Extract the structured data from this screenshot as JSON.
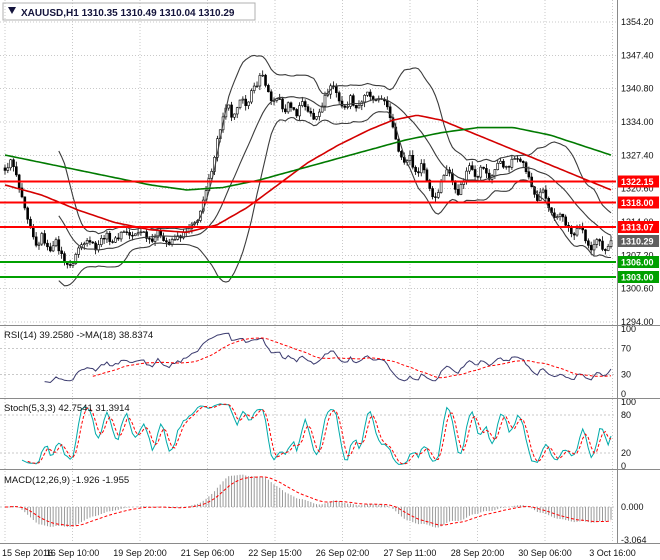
{
  "window": {
    "title": "XAUUSD,H1 1310.35 1310.49 1310.04 1310.29",
    "symbol": "XAUUSD",
    "timeframe": "H1",
    "ohlc": {
      "open": "1310.35",
      "high": "1310.49",
      "low": "1310.04",
      "close": "1310.29"
    }
  },
  "colors": {
    "background": "#ffffff",
    "grid": "#c9c9c9",
    "text": "#111111",
    "candle": "#000000",
    "candle_up_fill": "#ffffff",
    "bollinger": "#3c3c3c",
    "ma_red": "#d40000",
    "ma_green": "#007a00",
    "level_red": "#ff0000",
    "level_green": "#00a000",
    "bid_tag": "#5f5f5f",
    "rsi": "#3a3a6e",
    "signal_red": "#ff0000",
    "stoch": "#00aaaa",
    "macd_hist": "#9a9a9a",
    "separator": "#8a8a8a"
  },
  "chart_data": [
    {
      "type": "candlestick",
      "name": "main-price-panel",
      "title": "XAUUSD,H1 1310.35 1310.49 1310.04 1310.29",
      "ylim": [
        1294.0,
        1354.2
      ],
      "y_tick_labels": [
        "1354.20",
        "1347.40",
        "1340.80",
        "1334.00",
        "1327.40",
        "1320.60",
        "1314.00",
        "1307.20",
        "1300.60",
        "1294.00"
      ],
      "x_tick_labels": [
        "15 Sep 2016",
        "16 Sep 10:00",
        "19 Sep 20:00",
        "21 Sep 06:00",
        "22 Sep 15:00",
        "26 Sep 02:00",
        "27 Sep 11:00",
        "28 Sep 20:00",
        "30 Sep 06:00",
        "3 Oct 16:00"
      ],
      "candle_count": 215,
      "close_path": [
        [
          0.0,
          1324.0
        ],
        [
          0.008,
          1326.5
        ],
        [
          0.016,
          1324.5
        ],
        [
          0.028,
          1318.5
        ],
        [
          0.04,
          1313.0
        ],
        [
          0.052,
          1309.0
        ],
        [
          0.062,
          1311.5
        ],
        [
          0.072,
          1308.0
        ],
        [
          0.082,
          1310.5
        ],
        [
          0.095,
          1307.0
        ],
        [
          0.108,
          1304.8
        ],
        [
          0.12,
          1308.5
        ],
        [
          0.135,
          1311.0
        ],
        [
          0.15,
          1309.0
        ],
        [
          0.165,
          1311.5
        ],
        [
          0.18,
          1310.0
        ],
        [
          0.195,
          1312.5
        ],
        [
          0.21,
          1311.0
        ],
        [
          0.225,
          1312.5
        ],
        [
          0.24,
          1310.5
        ],
        [
          0.255,
          1312.0
        ],
        [
          0.27,
          1309.5
        ],
        [
          0.285,
          1311.0
        ],
        [
          0.3,
          1312.0
        ],
        [
          0.315,
          1314.0
        ],
        [
          0.325,
          1317.0
        ],
        [
          0.335,
          1321.5
        ],
        [
          0.345,
          1327.0
        ],
        [
          0.352,
          1331.5
        ],
        [
          0.36,
          1335.0
        ],
        [
          0.368,
          1337.5
        ],
        [
          0.376,
          1334.5
        ],
        [
          0.385,
          1337.0
        ],
        [
          0.393,
          1339.5
        ],
        [
          0.4,
          1337.0
        ],
        [
          0.408,
          1340.5
        ],
        [
          0.416,
          1342.0
        ],
        [
          0.424,
          1344.0
        ],
        [
          0.432,
          1341.0
        ],
        [
          0.44,
          1337.5
        ],
        [
          0.45,
          1339.5
        ],
        [
          0.46,
          1336.0
        ],
        [
          0.47,
          1338.0
        ],
        [
          0.48,
          1335.5
        ],
        [
          0.49,
          1338.5
        ],
        [
          0.5,
          1336.5
        ],
        [
          0.51,
          1334.5
        ],
        [
          0.52,
          1337.0
        ],
        [
          0.53,
          1339.5
        ],
        [
          0.54,
          1342.0
        ],
        [
          0.55,
          1339.0
        ],
        [
          0.56,
          1336.5
        ],
        [
          0.57,
          1339.0
        ],
        [
          0.58,
          1337.0
        ],
        [
          0.59,
          1338.5
        ],
        [
          0.6,
          1340.0
        ],
        [
          0.61,
          1337.5
        ],
        [
          0.62,
          1339.5
        ],
        [
          0.628,
          1337.5
        ],
        [
          0.638,
          1334.5
        ],
        [
          0.648,
          1329.5
        ],
        [
          0.658,
          1325.5
        ],
        [
          0.668,
          1327.5
        ],
        [
          0.678,
          1323.5
        ],
        [
          0.688,
          1326.0
        ],
        [
          0.698,
          1322.0
        ],
        [
          0.708,
          1318.5
        ],
        [
          0.718,
          1321.5
        ],
        [
          0.728,
          1325.0
        ],
        [
          0.738,
          1322.5
        ],
        [
          0.748,
          1320.0
        ],
        [
          0.758,
          1323.0
        ],
        [
          0.768,
          1326.0
        ],
        [
          0.778,
          1323.0
        ],
        [
          0.788,
          1325.5
        ],
        [
          0.798,
          1322.5
        ],
        [
          0.808,
          1324.5
        ],
        [
          0.818,
          1326.5
        ],
        [
          0.828,
          1324.5
        ],
        [
          0.838,
          1326.5
        ],
        [
          0.848,
          1327.5
        ],
        [
          0.858,
          1325.0
        ],
        [
          0.868,
          1321.5
        ],
        [
          0.878,
          1318.5
        ],
        [
          0.888,
          1320.5
        ],
        [
          0.898,
          1316.5
        ],
        [
          0.908,
          1314.0
        ],
        [
          0.918,
          1316.0
        ],
        [
          0.928,
          1313.0
        ],
        [
          0.938,
          1311.0
        ],
        [
          0.948,
          1313.5
        ],
        [
          0.958,
          1310.5
        ],
        [
          0.968,
          1308.0
        ],
        [
          0.978,
          1310.5
        ],
        [
          0.988,
          1308.5
        ],
        [
          1.0,
          1310.29
        ]
      ],
      "overlays": {
        "bollinger": {
          "period": 20,
          "deviation": 2
        },
        "ma_red": {
          "path": [
            [
              0,
              1321.5
            ],
            [
              0.06,
              1319.5
            ],
            [
              0.12,
              1316.5
            ],
            [
              0.18,
              1314.0
            ],
            [
              0.24,
              1312.5
            ],
            [
              0.3,
              1312.0
            ],
            [
              0.35,
              1313.5
            ],
            [
              0.4,
              1317.0
            ],
            [
              0.45,
              1321.5
            ],
            [
              0.5,
              1326.0
            ],
            [
              0.55,
              1329.5
            ],
            [
              0.6,
              1332.5
            ],
            [
              0.64,
              1334.5
            ],
            [
              0.68,
              1335.5
            ],
            [
              0.72,
              1334.5
            ],
            [
              0.76,
              1332.5
            ],
            [
              0.8,
              1330.5
            ],
            [
              0.84,
              1328.5
            ],
            [
              0.88,
              1326.5
            ],
            [
              0.92,
              1324.5
            ],
            [
              0.96,
              1322.5
            ],
            [
              1,
              1320.5
            ]
          ]
        },
        "ma_green": {
          "path": [
            [
              0,
              1327.5
            ],
            [
              0.08,
              1325.5
            ],
            [
              0.16,
              1323.5
            ],
            [
              0.24,
              1321.5
            ],
            [
              0.3,
              1320.5
            ],
            [
              0.36,
              1321.0
            ],
            [
              0.42,
              1322.5
            ],
            [
              0.48,
              1324.5
            ],
            [
              0.54,
              1326.5
            ],
            [
              0.6,
              1328.5
            ],
            [
              0.66,
              1330.5
            ],
            [
              0.72,
              1332.0
            ],
            [
              0.78,
              1333.0
            ],
            [
              0.84,
              1333.0
            ],
            [
              0.9,
              1331.5
            ],
            [
              0.95,
              1329.5
            ],
            [
              1,
              1327.5
            ]
          ]
        }
      },
      "levels": [
        {
          "price": 1322.15,
          "label": "1322.15",
          "kind": "resistance",
          "color": "#ff0000"
        },
        {
          "price": 1318.0,
          "label": "1318.00",
          "kind": "resistance",
          "color": "#ff0000"
        },
        {
          "price": 1313.07,
          "label": "1313.07",
          "kind": "resistance",
          "color": "#ff0000"
        },
        {
          "price": 1306.0,
          "label": "1306.00",
          "kind": "support",
          "color": "#00a000"
        },
        {
          "price": 1303.0,
          "label": "1303.00",
          "kind": "support",
          "color": "#00a000"
        }
      ],
      "bid": {
        "price": 1310.29,
        "label": "1310.29"
      }
    },
    {
      "type": "line",
      "name": "rsi-panel",
      "label": "RSI(14) 39.2580 ->MA(18) 38.8374",
      "params": {
        "period": 14,
        "ma_period": 18
      },
      "last_values": [
        39.258,
        38.8374
      ],
      "ylim": [
        0,
        100
      ],
      "levels": [
        70,
        30
      ],
      "y_ticks": [
        {
          "v": 100,
          "label": "100"
        },
        {
          "v": 70,
          "label": "70"
        },
        {
          "v": 30,
          "label": "30"
        },
        {
          "v": 0,
          "label": "0"
        }
      ]
    },
    {
      "type": "line",
      "name": "stochastic-panel",
      "label": "Stoch(5,3,3) 42.7541 31.3914",
      "params": {
        "k": 5,
        "d": 3,
        "slowing": 3
      },
      "last_values": [
        42.7541,
        31.3914
      ],
      "ylim": [
        0,
        100
      ],
      "levels": [
        80,
        20
      ],
      "y_ticks": [
        {
          "v": 100,
          "label": "100"
        },
        {
          "v": 80,
          "label": "80"
        },
        {
          "v": 20,
          "label": "20"
        },
        {
          "v": 0,
          "label": "0"
        }
      ]
    },
    {
      "type": "bar",
      "name": "macd-panel",
      "label": "MACD(12,26,9) -1.926 -1.955",
      "params": {
        "fast": 12,
        "slow": 26,
        "signal": 9
      },
      "last_values": [
        -1.926,
        -1.955
      ],
      "ylim": [
        -3.064,
        3.064
      ],
      "y_ticks": [
        {
          "v": 0,
          "label": "0.000"
        },
        {
          "v": -3.064,
          "label": "-3.064"
        }
      ]
    }
  ]
}
